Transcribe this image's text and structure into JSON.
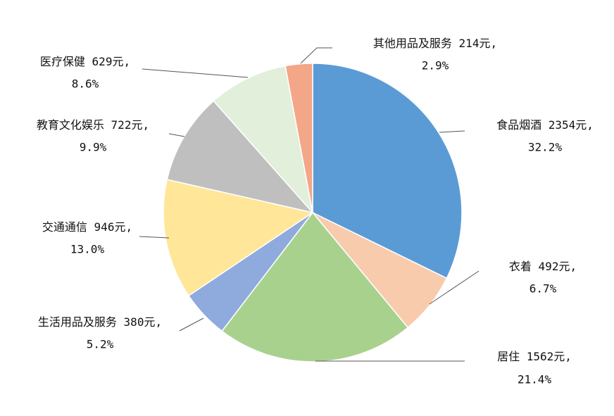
{
  "chart_data": {
    "type": "pie",
    "categories": [
      "食品烟酒",
      "衣着",
      "居住",
      "生活用品及服务",
      "交通通信",
      "教育文化娱乐",
      "医疗保健",
      "其他用品及服务"
    ],
    "values": [
      2354,
      492,
      1562,
      380,
      946,
      722,
      629,
      214
    ],
    "value_labels": [
      "2354元,",
      "492元,",
      "1562元,",
      "380元,",
      "946元,",
      "722元,",
      "629元,",
      "214元,"
    ],
    "percent_labels": [
      "32.2%",
      "6.7%",
      "21.4%",
      "5.2%",
      "13.0%",
      "9.9%",
      "8.6%",
      "2.9%"
    ],
    "colors": [
      "#5b9bd5",
      "#f8cbad",
      "#a9d18e",
      "#8faadc",
      "#ffe699",
      "#bfbfbf",
      "#e2efda",
      "#f4a688"
    ]
  }
}
